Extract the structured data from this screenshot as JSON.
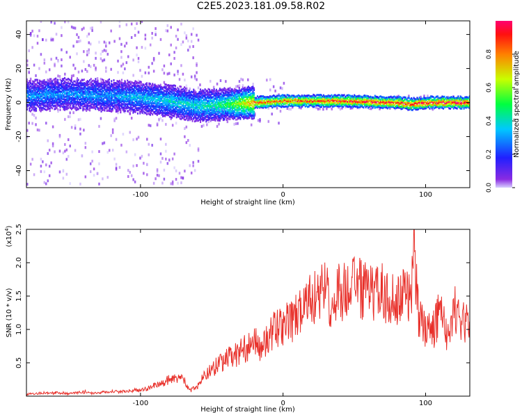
{
  "title": "C2E5.2023.181.09.58.R02",
  "colorbar": {
    "label": "Normalized spectral amplitude",
    "ticks": [
      "0.0",
      "0.2",
      "0.4",
      "0.6",
      "0.8"
    ],
    "tick_values": [
      0.0,
      0.2,
      0.4,
      0.6,
      0.8
    ]
  },
  "chart_data": [
    {
      "type": "heatmap",
      "xlabel": "Height of straight line (km)",
      "ylabel": "Frequency (Hz)",
      "xlim": [
        -180,
        131
      ],
      "ylim": [
        -50,
        48
      ],
      "xticks": [
        -100,
        0,
        100
      ],
      "xtick_labels": [
        "-100",
        "0",
        "100"
      ],
      "yticks": [
        -40,
        -20,
        0,
        20,
        40
      ],
      "ytick_labels": [
        "-40",
        "-20",
        "0",
        "20",
        "40"
      ],
      "colormap": "hsv-like (purple=0 → red=1)",
      "dominant_band": {
        "x": [
          -180,
          -150,
          -120,
          -100,
          -80,
          -60,
          -40,
          -20,
          0,
          40,
          80,
          90,
          100,
          131
        ],
        "center_freq_hz": [
          4,
          5,
          4,
          3,
          1,
          -2,
          -1,
          0,
          1,
          1,
          0,
          -1,
          0,
          0
        ],
        "peak_amplitude": [
          0.3,
          0.3,
          0.3,
          0.35,
          0.4,
          0.4,
          0.5,
          0.8,
          0.85,
          0.9,
          0.95,
          0.95,
          0.95,
          0.95
        ]
      }
    },
    {
      "type": "line",
      "xlabel": "Height of straight line (km)",
      "ylabel": "SNR (10 * v/v)",
      "y_multiplier_label": "(x10",
      "y_multiplier_exp": "4",
      "y_multiplier_close": ")",
      "xlim": [
        -180,
        131
      ],
      "ylim": [
        0,
        25000
      ],
      "xticks": [
        -100,
        0,
        100
      ],
      "xtick_labels": [
        "-100",
        "0",
        "100"
      ],
      "yticks": [
        5000,
        10000,
        15000,
        20000,
        25000
      ],
      "ytick_labels": [
        "0.5",
        "1.0",
        "1.5",
        "2.0",
        "2.5"
      ],
      "line_color": "#e8302a",
      "series": [
        {
          "x": [
            -180,
            -170,
            -160,
            -150,
            -140,
            -130,
            -120,
            -110,
            -100,
            -90,
            -85,
            -80,
            -75,
            -70,
            -65,
            -60,
            -55,
            -50,
            -45,
            -40,
            -35,
            -30,
            -25,
            -20,
            -15,
            -10,
            -5,
            0,
            5,
            10,
            15,
            20,
            25,
            30,
            35,
            40,
            45,
            50,
            55,
            60,
            65,
            70,
            75,
            80,
            85,
            90,
            92,
            95,
            100,
            105,
            110,
            115,
            120,
            125,
            131
          ],
          "values": [
            300,
            400,
            500,
            400,
            600,
            500,
            700,
            800,
            900,
            1500,
            2000,
            2500,
            3000,
            2500,
            800,
            1500,
            3000,
            4000,
            5000,
            5500,
            6000,
            6500,
            7500,
            8000,
            7000,
            9000,
            10000,
            10500,
            11000,
            12000,
            13000,
            14500,
            15000,
            15500,
            14000,
            16000,
            15500,
            17000,
            16000,
            15500,
            15000,
            15500,
            14500,
            15000,
            15500,
            14000,
            22000,
            12000,
            10000,
            9500,
            13000,
            9500,
            13000,
            12000,
            10000
          ]
        }
      ]
    }
  ]
}
